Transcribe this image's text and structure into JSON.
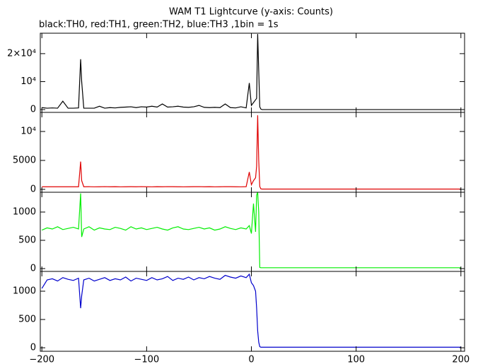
{
  "title": "WAM T1 Lightcurve (y-axis: Counts)",
  "subtitle": "black:TH0, red:TH1, green:TH2, blue:TH3 ,1bin = 1s",
  "chart_data": [
    {
      "type": "line",
      "x": [
        -200,
        -195,
        -190,
        -185,
        -180,
        -175,
        -170,
        -165,
        -163,
        -162,
        -160,
        -155,
        -150,
        -145,
        -140,
        -135,
        -130,
        -125,
        -120,
        -115,
        -110,
        -105,
        -100,
        -95,
        -90,
        -85,
        -80,
        -75,
        -70,
        -65,
        -60,
        -55,
        -50,
        -45,
        -40,
        -35,
        -30,
        -25,
        -20,
        -15,
        -10,
        -5,
        -2,
        0,
        2,
        4,
        5,
        6,
        7,
        8,
        9,
        10,
        15,
        20,
        30,
        40,
        50,
        60,
        70,
        80,
        90,
        100,
        110,
        120,
        130,
        140,
        150,
        160,
        170,
        180,
        190,
        200
      ],
      "series": [
        {
          "name": "TH0",
          "color": "#000000",
          "values": [
            700,
            500,
            600,
            500,
            3000,
            500,
            500,
            600,
            18000,
            10000,
            500,
            500,
            500,
            1200,
            500,
            700,
            600,
            800,
            900,
            1000,
            700,
            1000,
            900,
            1200,
            900,
            2000,
            900,
            1000,
            1200,
            900,
            800,
            1000,
            1500,
            800,
            700,
            800,
            700,
            2000,
            700,
            600,
            1000,
            600,
            9500,
            1500,
            2500,
            3500,
            4000,
            27000,
            14000,
            1000,
            200,
            0,
            0,
            0,
            0,
            0,
            0,
            0,
            0,
            0,
            0,
            0,
            0,
            0,
            0,
            0,
            0,
            0,
            0,
            0,
            0,
            0
          ]
        }
      ],
      "xlim": [
        -201.5,
        203.5
      ],
      "xticks": [
        {
          "value": -200,
          "label": "−200"
        },
        {
          "value": -100,
          "label": "−100"
        },
        0,
        100,
        200
      ],
      "ylim": [
        -1000,
        27300
      ],
      "yticks": [
        0,
        {
          "value": 10000,
          "label": "10⁴"
        },
        {
          "value": 20000,
          "label": "2×10⁴"
        }
      ]
    },
    {
      "type": "line",
      "x": [
        -200,
        -195,
        -190,
        -185,
        -180,
        -175,
        -170,
        -165,
        -163,
        -162,
        -160,
        -155,
        -150,
        -145,
        -140,
        -135,
        -130,
        -125,
        -120,
        -115,
        -110,
        -105,
        -100,
        -95,
        -90,
        -85,
        -80,
        -75,
        -70,
        -65,
        -60,
        -55,
        -50,
        -45,
        -40,
        -35,
        -30,
        -25,
        -20,
        -15,
        -10,
        -5,
        -2,
        0,
        2,
        4,
        5,
        6,
        7,
        8,
        9,
        10,
        15,
        20,
        30,
        40,
        50,
        60,
        70,
        80,
        90,
        100,
        110,
        120,
        130,
        140,
        150,
        160,
        170,
        180,
        190,
        200
      ],
      "series": [
        {
          "name": "TH1",
          "color": "#e00000",
          "values": [
            450,
            450,
            450,
            450,
            450,
            450,
            450,
            450,
            4800,
            1500,
            450,
            460,
            440,
            450,
            470,
            450,
            460,
            440,
            450,
            460,
            450,
            470,
            450,
            440,
            460,
            450,
            470,
            460,
            450,
            440,
            450,
            460,
            470,
            450,
            460,
            440,
            450,
            470,
            460,
            450,
            440,
            460,
            3000,
            800,
            1500,
            2000,
            4000,
            12800,
            5000,
            500,
            100,
            50,
            50,
            50,
            50,
            50,
            50,
            50,
            50,
            50,
            50,
            50,
            50,
            50,
            50,
            50,
            50,
            50,
            50,
            50,
            50,
            50
          ]
        }
      ],
      "xlim": [
        -201.5,
        203.5
      ],
      "xticks": [
        {
          "value": -200,
          "label": "−200"
        },
        {
          "value": -100,
          "label": "−100"
        },
        0,
        100,
        200
      ],
      "ylim": [
        -500,
        13300
      ],
      "yticks": [
        0,
        5000,
        {
          "value": 10000,
          "label": "10⁴"
        }
      ]
    },
    {
      "type": "line",
      "x": [
        -200,
        -195,
        -190,
        -185,
        -180,
        -175,
        -170,
        -165,
        -163,
        -162,
        -160,
        -155,
        -150,
        -145,
        -140,
        -135,
        -130,
        -125,
        -120,
        -115,
        -110,
        -105,
        -100,
        -95,
        -90,
        -85,
        -80,
        -75,
        -70,
        -65,
        -60,
        -55,
        -50,
        -45,
        -40,
        -35,
        -30,
        -25,
        -20,
        -15,
        -10,
        -5,
        -2,
        0,
        2,
        4,
        5,
        6,
        7,
        8,
        9,
        10,
        15,
        20,
        30,
        40,
        50,
        60,
        70,
        80,
        90,
        100,
        110,
        120,
        130,
        140,
        150,
        160,
        170,
        180,
        190,
        200
      ],
      "series": [
        {
          "name": "TH2",
          "color": "#00ee00",
          "values": [
            680,
            720,
            700,
            740,
            690,
            710,
            730,
            700,
            1330,
            560,
            700,
            740,
            680,
            720,
            700,
            690,
            730,
            710,
            680,
            740,
            700,
            720,
            690,
            710,
            730,
            700,
            680,
            720,
            740,
            700,
            690,
            710,
            730,
            700,
            720,
            680,
            700,
            740,
            710,
            690,
            720,
            700,
            760,
            620,
            1150,
            650,
            1300,
            1350,
            1000,
            20,
            15,
            15,
            15,
            15,
            15,
            15,
            15,
            15,
            15,
            15,
            15,
            15,
            15,
            15,
            15,
            15,
            15,
            15,
            15,
            15,
            15,
            15
          ]
        }
      ],
      "xlim": [
        -201.5,
        203.5
      ],
      "xticks": [
        {
          "value": -200,
          "label": "−200"
        },
        {
          "value": -100,
          "label": "−100"
        },
        0,
        100,
        200
      ],
      "ylim": [
        -50,
        1350
      ],
      "yticks": [
        0,
        500,
        1000
      ]
    },
    {
      "type": "line",
      "x": [
        -200,
        -195,
        -190,
        -185,
        -180,
        -175,
        -170,
        -165,
        -163,
        -162,
        -160,
        -155,
        -150,
        -145,
        -140,
        -135,
        -130,
        -125,
        -120,
        -115,
        -110,
        -105,
        -100,
        -95,
        -90,
        -85,
        -80,
        -75,
        -70,
        -65,
        -60,
        -55,
        -50,
        -45,
        -40,
        -35,
        -30,
        -25,
        -20,
        -15,
        -10,
        -5,
        -2,
        0,
        2,
        4,
        5,
        6,
        7,
        8,
        9,
        10,
        15,
        20,
        30,
        40,
        50,
        60,
        70,
        80,
        90,
        100,
        110,
        120,
        130,
        140,
        150,
        160,
        170,
        180,
        190,
        200
      ],
      "series": [
        {
          "name": "TH3",
          "color": "#0000cc",
          "values": [
            1050,
            1200,
            1220,
            1180,
            1240,
            1210,
            1190,
            1230,
            700,
            920,
            1200,
            1230,
            1180,
            1210,
            1240,
            1190,
            1220,
            1200,
            1250,
            1180,
            1230,
            1210,
            1190,
            1240,
            1200,
            1220,
            1260,
            1190,
            1230,
            1210,
            1250,
            1200,
            1240,
            1220,
            1260,
            1230,
            1210,
            1280,
            1250,
            1230,
            1270,
            1240,
            1300,
            1150,
            1100,
            1000,
            700,
            300,
            100,
            20,
            10,
            10,
            10,
            10,
            10,
            10,
            10,
            10,
            10,
            10,
            10,
            10,
            10,
            10,
            10,
            10,
            10,
            10,
            10,
            10,
            10,
            10
          ]
        }
      ],
      "xlim": [
        -201.5,
        203.5
      ],
      "xticks": [
        {
          "value": -200,
          "label": "−200"
        },
        {
          "value": -100,
          "label": "−100"
        },
        0,
        100,
        200
      ],
      "ylim": [
        -62,
        1350
      ],
      "yticks": [
        0,
        500,
        1000
      ]
    }
  ]
}
